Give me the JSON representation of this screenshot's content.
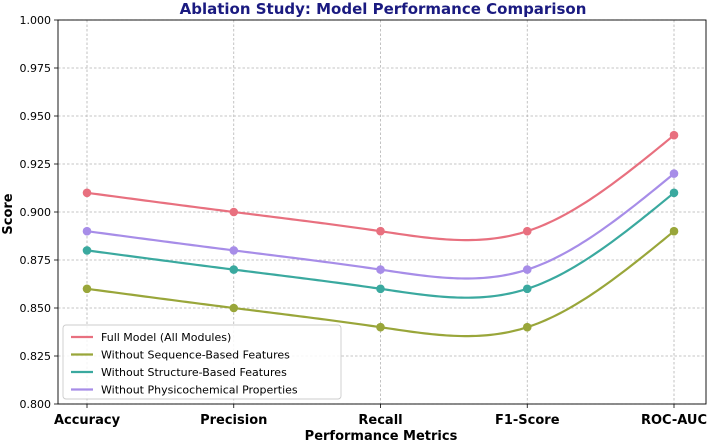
{
  "chart_data": {
    "type": "line",
    "title": "Ablation Study: Model Performance Comparison",
    "xlabel": "Performance Metrics",
    "ylabel": "Score",
    "categories": [
      "Accuracy",
      "Precision",
      "Recall",
      "F1-Score",
      "ROC-AUC"
    ],
    "ylim": [
      0.8,
      1.0
    ],
    "yticks": [
      "0.800",
      "0.825",
      "0.850",
      "0.875",
      "0.900",
      "0.925",
      "0.950",
      "0.975",
      "1.000"
    ],
    "grid": true,
    "legend_position": "lower-left",
    "series": [
      {
        "name": "Full Model (All Modules)",
        "values": [
          0.91,
          0.9,
          0.89,
          0.89,
          0.94
        ],
        "color": "#e8707f"
      },
      {
        "name": "Without Sequence-Based Features",
        "values": [
          0.86,
          0.85,
          0.84,
          0.84,
          0.89
        ],
        "color": "#99a63a"
      },
      {
        "name": "Without Structure-Based Features",
        "values": [
          0.88,
          0.87,
          0.86,
          0.86,
          0.91
        ],
        "color": "#3aa99f"
      },
      {
        "name": "Without Physicochemical Properties",
        "values": [
          0.89,
          0.88,
          0.87,
          0.87,
          0.92
        ],
        "color": "#a78de8"
      }
    ]
  }
}
